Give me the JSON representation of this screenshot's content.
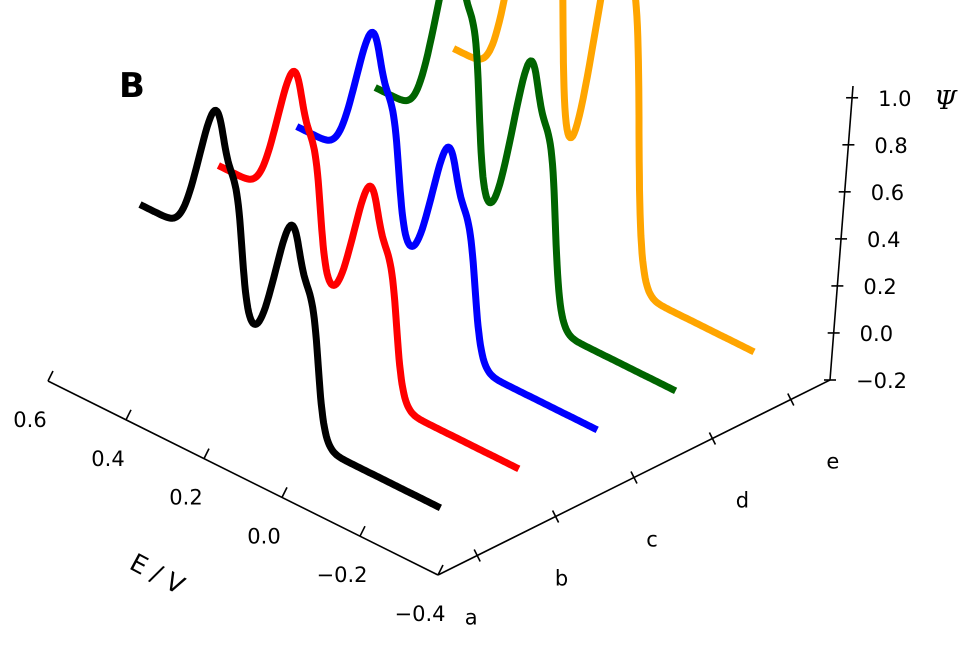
{
  "chart_data": {
    "type": "line",
    "panel_label": "B",
    "x_axis": {
      "label": "E / V",
      "ticks": [
        "0.6",
        "0.4",
        "0.2",
        "0.0",
        "−0.2",
        "−0.4"
      ],
      "range": [
        0.6,
        -0.4
      ]
    },
    "depth_axis": {
      "ticks": [
        "a",
        "b",
        "c",
        "d",
        "e"
      ]
    },
    "z_axis": {
      "label": "Ψ",
      "ticks": [
        "1.0",
        "0.8",
        "0.6",
        "0.4",
        "0.2",
        "0.0",
        "−0.2"
      ],
      "range": [
        -0.2,
        1.05
      ]
    },
    "grid": false,
    "series": [
      {
        "depth": "a",
        "color": "#000000",
        "baseline_left": 0.55,
        "baseline_right": -0.08,
        "peaks": [
          {
            "center": 0.333,
            "width": 0.03,
            "height": 0.525
          },
          {
            "center": 0.267,
            "width": 0.03,
            "height": 0.5
          },
          {
            "center": 0.123,
            "width": 0.03,
            "height": 0.525
          },
          {
            "center": 0.057,
            "width": 0.03,
            "height": 0.5
          }
        ]
      },
      {
        "depth": "b",
        "color": "#ff0000",
        "baseline_left": 0.55,
        "baseline_right": -0.08,
        "peaks": [
          {
            "center": 0.333,
            "width": 0.03,
            "height": 0.525
          },
          {
            "center": 0.267,
            "width": 0.03,
            "height": 0.5
          },
          {
            "center": 0.123,
            "width": 0.03,
            "height": 0.525
          },
          {
            "center": 0.057,
            "width": 0.03,
            "height": 0.5
          }
        ]
      },
      {
        "depth": "c",
        "color": "#0000ff",
        "baseline_left": 0.55,
        "baseline_right": -0.08,
        "peaks": [
          {
            "center": 0.333,
            "width": 0.03,
            "height": 0.525
          },
          {
            "center": 0.267,
            "width": 0.03,
            "height": 0.5
          },
          {
            "center": 0.123,
            "width": 0.03,
            "height": 0.525
          },
          {
            "center": 0.057,
            "width": 0.03,
            "height": 0.5
          }
        ]
      },
      {
        "depth": "d",
        "color": "#006400",
        "baseline_left": 0.55,
        "baseline_right": -0.08,
        "peaks": [
          {
            "center": 0.333,
            "width": 0.03,
            "height": 0.71
          },
          {
            "center": 0.267,
            "width": 0.03,
            "height": 0.66
          },
          {
            "center": 0.123,
            "width": 0.03,
            "height": 0.71
          },
          {
            "center": 0.057,
            "width": 0.03,
            "height": 0.66
          }
        ]
      },
      {
        "depth": "e",
        "color": "#ffa500",
        "baseline_left": 0.55,
        "baseline_right": -0.08,
        "peaks": [
          {
            "center": 0.333,
            "width": 0.033,
            "height": 1.02
          },
          {
            "center": 0.267,
            "width": 0.033,
            "height": 1.0
          },
          {
            "center": 0.123,
            "width": 0.033,
            "height": 1.02
          },
          {
            "center": 0.057,
            "width": 0.033,
            "height": 1.0
          }
        ]
      }
    ]
  }
}
